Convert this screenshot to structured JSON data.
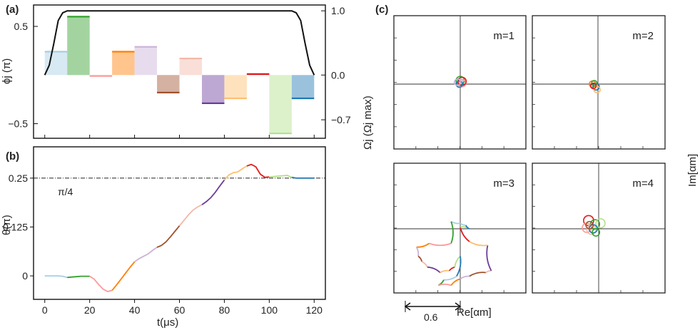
{
  "series_colors": [
    "#a6cee3",
    "#33a02c",
    "#fb9a99",
    "#ff7f00",
    "#cab2d6",
    "#a0522d",
    "#f2b8a8",
    "#6a3d9a",
    "#fdbf6f",
    "#e31a1c",
    "#b2df8a",
    "#1f78b4"
  ],
  "chart_data": [
    {
      "id": "a",
      "type": "bar",
      "panel_label": "(a)",
      "title": "",
      "xlabel": "",
      "ylabel_left": "ϕj (π)",
      "ylabel_right": "Ωj (Ωj max)",
      "xlim": [
        -5,
        125
      ],
      "ylim": [
        -0.65,
        0.72
      ],
      "yticks_left": [
        {
          "v": 0.5,
          "label": "0.5"
        },
        {
          "v": -0.5,
          "label": "−0.5"
        }
      ],
      "yticks_right": [
        {
          "v": 0.66,
          "label": "1.0"
        },
        {
          "v": 0.0,
          "label": "0.0"
        },
        {
          "v": -0.46,
          "label": "−0.7"
        }
      ],
      "segment_width": 10,
      "segment_starts": [
        0,
        10,
        20,
        30,
        40,
        50,
        60,
        70,
        80,
        90,
        100,
        110
      ],
      "values": [
        0.24,
        0.6,
        -0.01,
        0.24,
        0.29,
        -0.18,
        0.17,
        -0.29,
        -0.24,
        0.01,
        -0.6,
        -0.24
      ],
      "amplitude_curve": {
        "name": "Ωj envelope",
        "t": [
          0,
          2,
          4,
          6,
          8,
          10,
          12,
          108,
          110,
          112,
          114,
          116,
          118,
          120
        ],
        "values": [
          0.0,
          0.1,
          0.32,
          0.56,
          0.64,
          0.66,
          0.66,
          0.66,
          0.66,
          0.64,
          0.56,
          0.32,
          0.1,
          0.0
        ]
      }
    },
    {
      "id": "b",
      "type": "line",
      "panel_label": "(b)",
      "title": "",
      "xlabel": "t(μs)",
      "ylabel": "θ(π)",
      "xlim": [
        -5,
        125
      ],
      "ylim": [
        -0.06,
        0.33
      ],
      "xticks": [
        0,
        20,
        40,
        60,
        80,
        100,
        120
      ],
      "yticks": [
        {
          "v": 0.25,
          "label": "0.25"
        },
        {
          "v": 0.125,
          "label": "0.125"
        },
        {
          "v": 0,
          "label": "0"
        }
      ],
      "reference": {
        "y": 0.25,
        "label": "π/4"
      },
      "t": [
        0,
        2,
        4,
        6,
        8,
        10,
        12,
        14,
        16,
        18,
        20,
        22,
        24,
        26,
        28,
        30,
        32,
        34,
        36,
        38,
        40,
        42,
        44,
        46,
        48,
        50,
        52,
        54,
        56,
        58,
        60,
        62,
        64,
        66,
        68,
        70,
        72,
        74,
        76,
        78,
        80,
        82,
        84,
        86,
        88,
        90,
        92,
        94,
        96,
        98,
        100,
        102,
        104,
        106,
        108,
        110,
        112,
        114,
        116,
        118,
        120
      ],
      "values": [
        0,
        0,
        0,
        0,
        -0.001,
        -0.004,
        -0.003,
        -0.002,
        -0.001,
        -0.001,
        -0.001,
        -0.008,
        -0.022,
        -0.034,
        -0.04,
        -0.037,
        -0.023,
        -0.008,
        0.007,
        0.022,
        0.036,
        0.044,
        0.05,
        0.056,
        0.065,
        0.073,
        0.078,
        0.087,
        0.1,
        0.114,
        0.128,
        0.142,
        0.156,
        0.168,
        0.176,
        0.182,
        0.19,
        0.2,
        0.214,
        0.23,
        0.245,
        0.258,
        0.264,
        0.266,
        0.274,
        0.281,
        0.285,
        0.279,
        0.26,
        0.252,
        0.253,
        0.254,
        0.255,
        0.256,
        0.257,
        0.252,
        0.25,
        0.25,
        0.25,
        0.25,
        0.25
      ]
    },
    {
      "id": "c",
      "type": "line",
      "panel_label": "(c)",
      "title": "",
      "xlabel": "Re[αm]",
      "ylabel": "Im[αm]",
      "scale_bar_label": "0.6",
      "scale_bar_length": 0.6,
      "axis_range": [
        -0.66,
        0.66
      ],
      "subplots": [
        {
          "label": "m=1",
          "loops": [
            {
              "color_index": 0,
              "cx": -0.01,
              "cy": 0.02,
              "r": 0.04
            },
            {
              "color_index": 1,
              "cx": 0.0,
              "cy": 0.04,
              "r": 0.045
            },
            {
              "color_index": 2,
              "cx": 0.02,
              "cy": 0.01,
              "r": 0.04
            },
            {
              "color_index": 9,
              "cx": 0.02,
              "cy": 0.03,
              "r": 0.045
            },
            {
              "color_index": 11,
              "cx": -0.01,
              "cy": 0.0,
              "r": 0.035
            },
            {
              "color_index": 4,
              "cx": -0.03,
              "cy": 0.02,
              "r": 0.035
            }
          ]
        },
        {
          "label": "m=2",
          "loops": [
            {
              "color_index": 3,
              "cx": -0.06,
              "cy": 0.0,
              "r": 0.035
            },
            {
              "color_index": 11,
              "cx": -0.02,
              "cy": -0.03,
              "r": 0.035
            },
            {
              "color_index": 1,
              "cx": -0.04,
              "cy": 0.01,
              "r": 0.03
            },
            {
              "color_index": 8,
              "cx": -0.01,
              "cy": -0.06,
              "r": 0.035
            },
            {
              "color_index": 9,
              "cx": -0.05,
              "cy": -0.02,
              "r": 0.03
            }
          ]
        },
        {
          "label": "m=3",
          "curve": {
            "x": [
              0.0,
              -0.1,
              -0.1,
              -0.34,
              -0.48,
              -0.46,
              -0.42,
              -0.36,
              -0.22,
              -0.12,
              -0.06,
              0.0,
              -0.04,
              -0.18,
              -0.24,
              -0.1,
              0.0,
              0.1,
              0.28,
              0.34,
              0.3,
              0.1,
              0.0,
              0.1,
              0.06,
              0.0
            ],
            "y": [
              0.06,
              0.08,
              -0.16,
              -0.16,
              -0.2,
              -0.3,
              -0.36,
              -0.42,
              -0.48,
              -0.46,
              -0.42,
              -0.3,
              -0.52,
              -0.56,
              -0.62,
              -0.62,
              -0.55,
              -0.52,
              -0.48,
              -0.46,
              -0.18,
              -0.14,
              0.02,
              0.0,
              0.04,
              0.06
            ]
          }
        },
        {
          "label": "m=4",
          "loops": [
            {
              "color_index": 9,
              "cx": -0.11,
              "cy": 0.09,
              "r": 0.055
            },
            {
              "color_index": 1,
              "cx": -0.04,
              "cy": 0.05,
              "r": 0.05
            },
            {
              "color_index": 10,
              "cx": 0.02,
              "cy": 0.06,
              "r": 0.05
            },
            {
              "color_index": 2,
              "cx": -0.13,
              "cy": 0.01,
              "r": 0.05
            },
            {
              "color_index": 6,
              "cx": -0.08,
              "cy": -0.01,
              "r": 0.05
            },
            {
              "color_index": 11,
              "cx": -0.06,
              "cy": 0.0,
              "r": 0.045
            },
            {
              "color_index": 5,
              "cx": -0.1,
              "cy": 0.04,
              "r": 0.04
            },
            {
              "color_index": 1,
              "cx": -0.03,
              "cy": -0.04,
              "r": 0.04
            }
          ]
        }
      ]
    }
  ]
}
